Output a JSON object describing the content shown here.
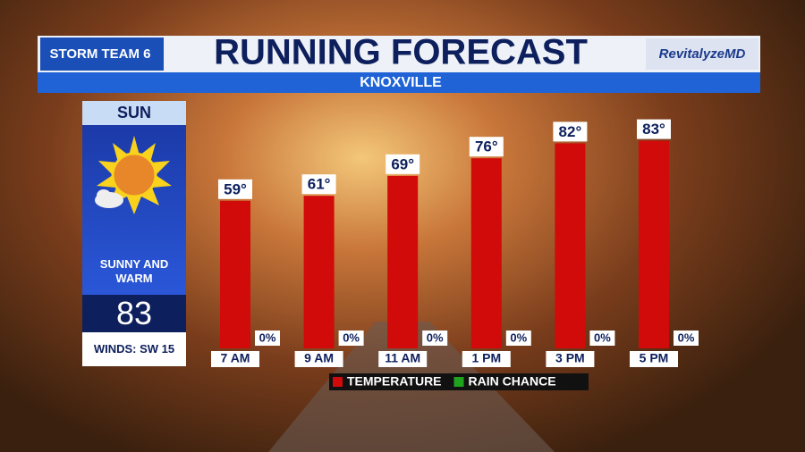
{
  "header": {
    "logo": "STORM TEAM 6",
    "title": "RUNNING FORECAST",
    "sponsor": "RevitalyzeMD",
    "location": "KNOXVILLE"
  },
  "panel": {
    "day": "SUN",
    "condition": "SUNNY AND WARM",
    "high": 83,
    "winds": "WINDS: SW 15"
  },
  "chart_data": {
    "type": "bar",
    "categories": [
      "7 AM",
      "9 AM",
      "11 AM",
      "1 PM",
      "3 PM",
      "5 PM"
    ],
    "series": [
      {
        "name": "TEMPERATURE",
        "color": "#d10a0a",
        "values": [
          59,
          61,
          69,
          76,
          82,
          83
        ],
        "value_labels": [
          "59°",
          "61°",
          "69°",
          "76°",
          "82°",
          "83°"
        ]
      },
      {
        "name": "RAIN CHANCE",
        "color": "#1fa31f",
        "values": [
          0,
          0,
          0,
          0,
          0,
          0
        ],
        "value_labels": [
          "0%",
          "0%",
          "0%",
          "0%",
          "0%",
          "0%"
        ]
      }
    ]
  }
}
